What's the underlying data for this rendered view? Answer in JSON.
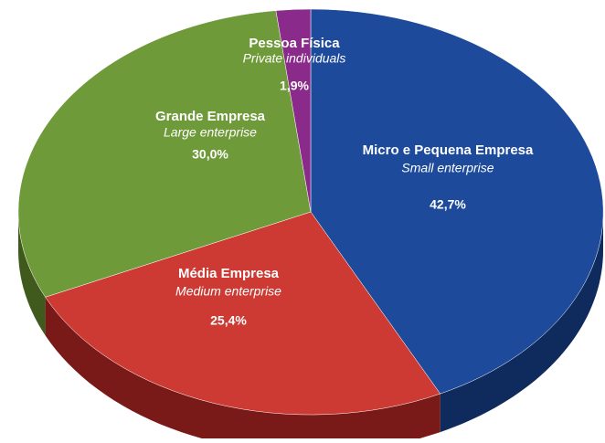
{
  "chart_data": {
    "type": "pie",
    "categories": [
      "Micro e Pequena  Empresa",
      "Média Empresa",
      "Grande Empresa",
      "Pessoa Física"
    ],
    "categories_en": [
      "Small enterprise",
      "Medium  enterprise",
      "Large  enterprise",
      "Private individuals"
    ],
    "values": [
      42.7,
      25.4,
      30.0,
      1.9
    ],
    "value_labels": [
      "42,7%",
      "25,4%",
      "30,0%",
      "1,9%"
    ],
    "colors": [
      "#1d4a9a",
      "#cc3a33",
      "#6f9a3a",
      "#8a2a8a"
    ],
    "side_colors": [
      "#0f2a5c",
      "#7a1a18",
      "#3f5a1c",
      "#4a124a"
    ],
    "text_colors": [
      "#ffffff",
      "#ffffff",
      "#ffffff",
      "#ffffff"
    ]
  }
}
